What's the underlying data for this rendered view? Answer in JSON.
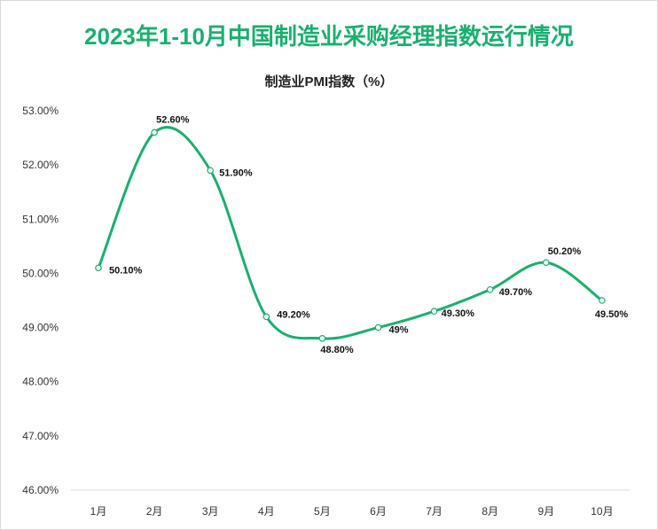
{
  "title": "2023年1-10月中国制造业采购经理指数运行情况",
  "chart_data": {
    "type": "line",
    "title": "2023年1-10月中国制造业采购经理指数运行情况",
    "subtitle": "制造业PMI指数（%）",
    "categories": [
      "1月",
      "2月",
      "3月",
      "4月",
      "5月",
      "6月",
      "7月",
      "8月",
      "9月",
      "10月"
    ],
    "series": [
      {
        "name": "制造业PMI指数",
        "values": [
          50.1,
          52.6,
          51.9,
          49.2,
          48.8,
          49.0,
          49.3,
          49.7,
          50.2,
          49.5
        ]
      }
    ],
    "data_labels": [
      "50.10%",
      "52.60%",
      "51.90%",
      "49.20%",
      "48.80%",
      "49%",
      "49.30%",
      "49.70%",
      "50.20%",
      "49.50%"
    ],
    "ylim": [
      46,
      53
    ],
    "yticks": [
      "46.00%",
      "47.00%",
      "48.00%",
      "49.00%",
      "50.00%",
      "51.00%",
      "52.00%",
      "53.00%"
    ],
    "grid": false,
    "legend": "none",
    "line_color": "#19b06f"
  }
}
